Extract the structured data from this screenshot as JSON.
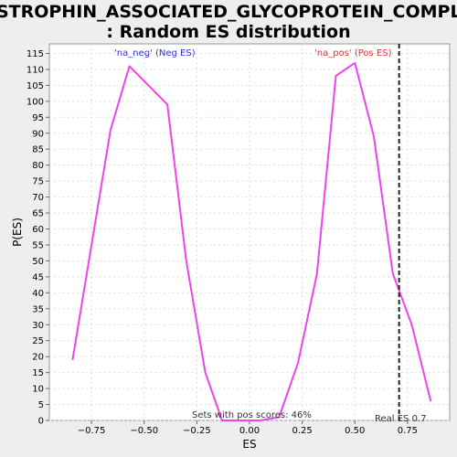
{
  "chart_data": {
    "type": "line",
    "title_line1": "DYSTROPHIN_ASSOCIATED_GLYCOPROTEIN_COMPLEX",
    "title_line2": ": Random ES distribution",
    "xlabel": "ES",
    "ylabel": "P(ES)",
    "xlim": [
      -0.95,
      0.95
    ],
    "ylim": [
      0,
      118
    ],
    "x_ticks": [
      -0.75,
      -0.5,
      -0.25,
      0.0,
      0.25,
      0.5,
      0.75
    ],
    "x_tick_labels": [
      "−0.75",
      "−0.50",
      "−0.25",
      "0.00",
      "0.25",
      "0.50",
      "0.75"
    ],
    "y_ticks": [
      0,
      5,
      10,
      15,
      20,
      25,
      30,
      35,
      40,
      45,
      50,
      55,
      60,
      65,
      70,
      75,
      80,
      85,
      90,
      95,
      100,
      105,
      110,
      115
    ],
    "grid": true,
    "series": [
      {
        "color": "#ee44ee",
        "x": [
          -0.84,
          -0.66,
          -0.57,
          -0.39,
          -0.3,
          -0.21,
          -0.13,
          -0.04,
          0.05,
          0.14,
          0.23,
          0.32,
          0.41,
          0.5,
          0.59,
          0.68,
          0.77,
          0.86
        ],
        "y": [
          19,
          91,
          111,
          99,
          50,
          15,
          0,
          0,
          0,
          1,
          18,
          46,
          108,
          112,
          89,
          46,
          30,
          6
        ]
      }
    ],
    "annotations": {
      "neg_label": "'na_neg' (Neg ES)",
      "neg_color": "#3333cc",
      "pos_label": "'na_pos' (Pos ES)",
      "pos_color": "#dd3333",
      "pos_scores_text": "Sets with pos scores: 46%",
      "real_es_text": "Real ES 0.7",
      "real_es_value": 0.71
    }
  }
}
